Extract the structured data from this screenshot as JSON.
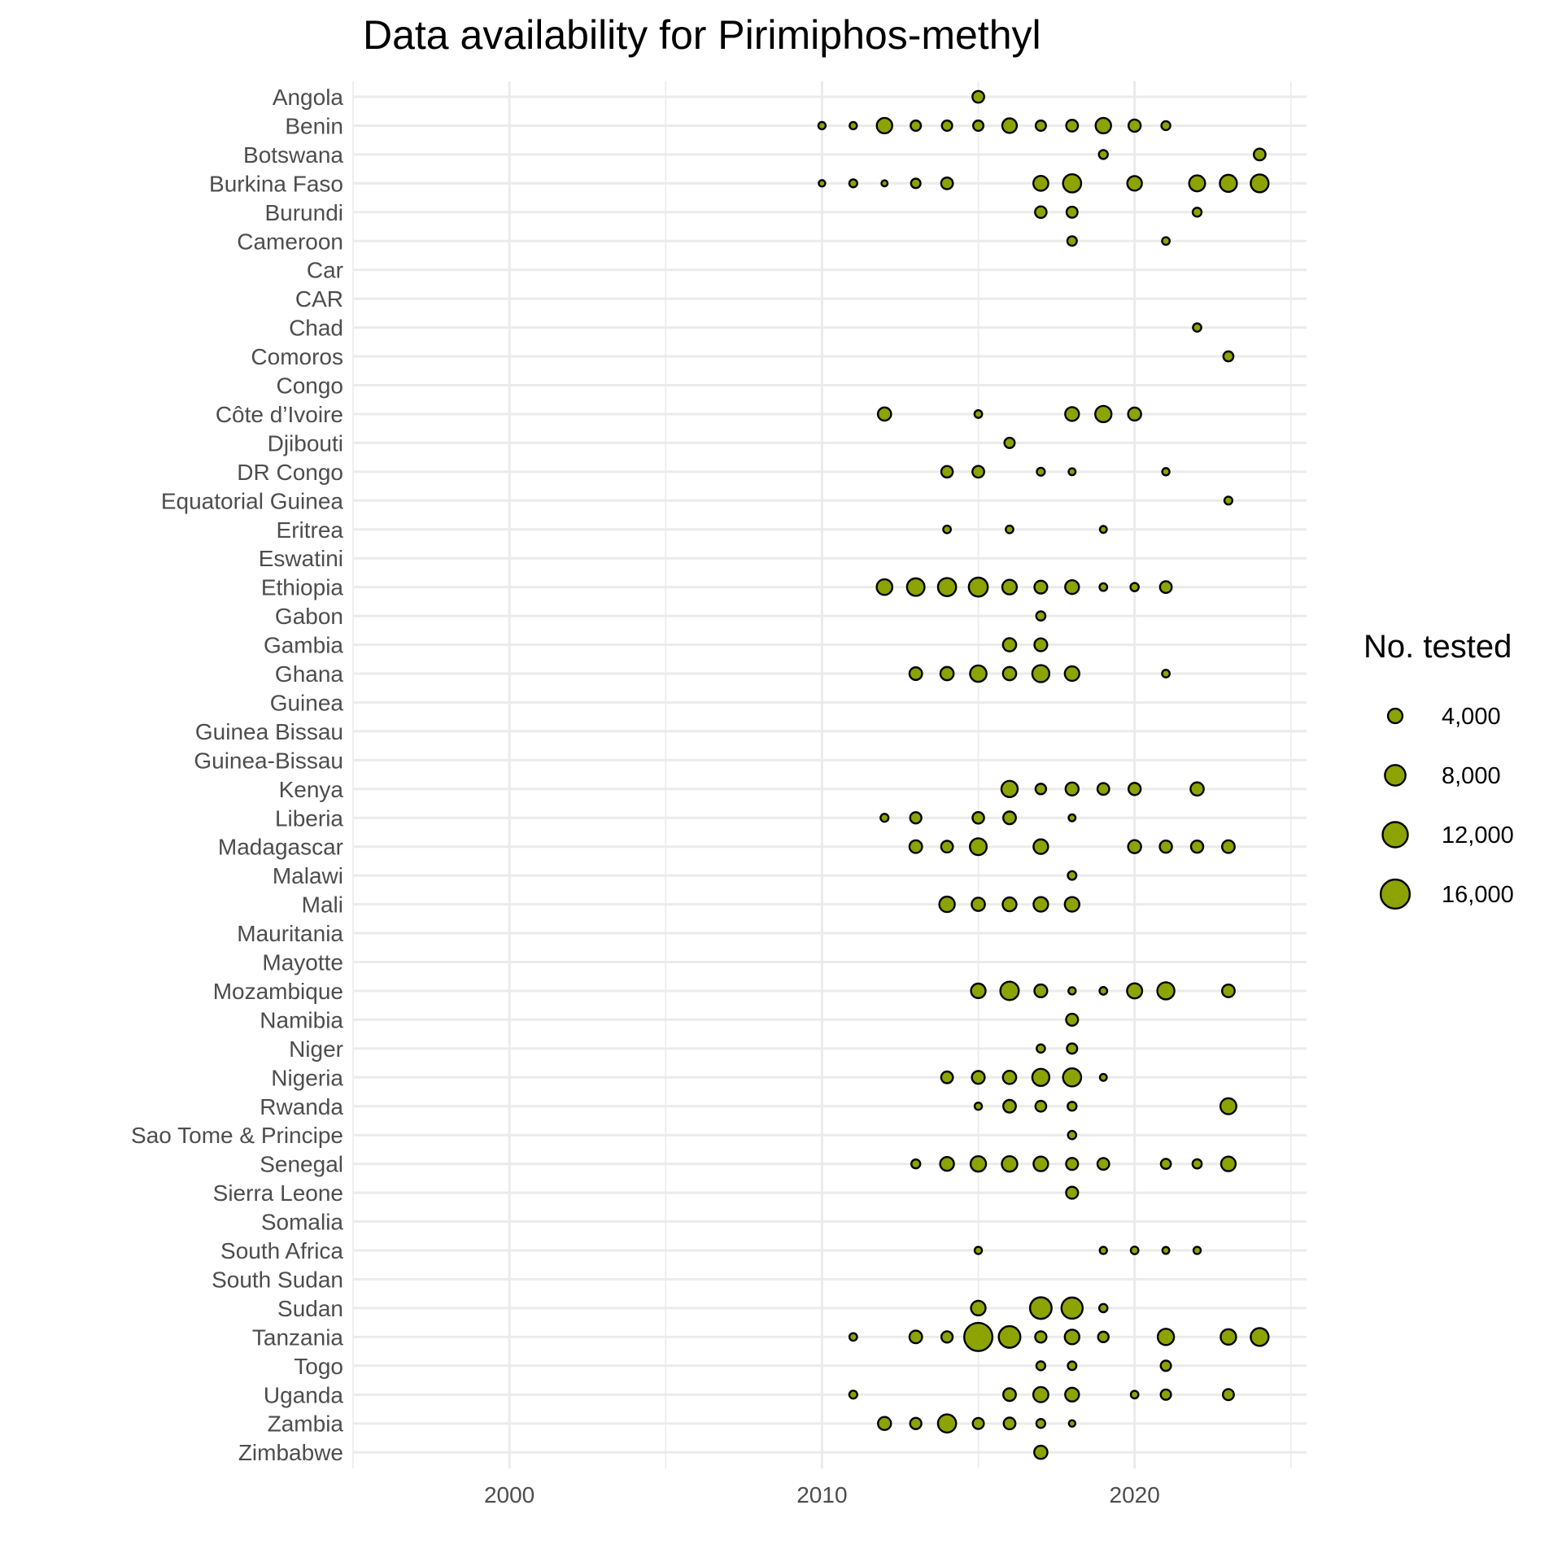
{
  "chart_data": {
    "type": "scatter",
    "title": "Data availability for Pirimiphos-methyl",
    "xlabel": "",
    "ylabel": "",
    "xlim": [
      1995,
      2025.5
    ],
    "x_ticks": [
      2000,
      2010,
      2020
    ],
    "x_tick_labels": [
      "2000",
      "2010",
      "2020"
    ],
    "grid": true,
    "point_color": "#8ca300",
    "point_stroke": "#000000",
    "size_legend": {
      "title": "No. tested",
      "placement": "right",
      "breaks": [
        4000,
        8000,
        12000,
        16000
      ],
      "labels": [
        "4,000",
        "8,000",
        "12,000",
        "16,000"
      ]
    },
    "categories": [
      "Angola",
      "Benin",
      "Botswana",
      "Burkina Faso",
      "Burundi",
      "Cameroon",
      "Car",
      "CAR",
      "Chad",
      "Comoros",
      "Congo",
      "Côte d’Ivoire",
      "Djibouti",
      "DR Congo",
      "Equatorial Guinea",
      "Eritrea",
      "Eswatini",
      "Ethiopia",
      "Gabon",
      "Gambia",
      "Ghana",
      "Guinea",
      "Guinea Bissau",
      "Guinea-Bissau",
      "Kenya",
      "Liberia",
      "Madagascar",
      "Malawi",
      "Mali",
      "Mauritania",
      "Mayotte",
      "Mozambique",
      "Namibia",
      "Niger",
      "Nigeria",
      "Rwanda",
      "Sao Tome & Principe",
      "Senegal",
      "Sierra Leone",
      "Somalia",
      "South Africa",
      "South Sudan",
      "Sudan",
      "Tanzania",
      "Togo",
      "Uganda",
      "Zambia",
      "Zimbabwe"
    ],
    "points": [
      {
        "country": "Angola",
        "year": 2015,
        "n": 2600
      },
      {
        "country": "Benin",
        "year": 2010,
        "n": 1000
      },
      {
        "country": "Benin",
        "year": 2011,
        "n": 1000
      },
      {
        "country": "Benin",
        "year": 2012,
        "n": 4500
      },
      {
        "country": "Benin",
        "year": 2013,
        "n": 2000
      },
      {
        "country": "Benin",
        "year": 2014,
        "n": 2000
      },
      {
        "country": "Benin",
        "year": 2015,
        "n": 2000
      },
      {
        "country": "Benin",
        "year": 2016,
        "n": 4000
      },
      {
        "country": "Benin",
        "year": 2017,
        "n": 2000
      },
      {
        "country": "Benin",
        "year": 2018,
        "n": 2600
      },
      {
        "country": "Benin",
        "year": 2019,
        "n": 4500
      },
      {
        "country": "Benin",
        "year": 2020,
        "n": 2800
      },
      {
        "country": "Benin",
        "year": 2021,
        "n": 1500
      },
      {
        "country": "Botswana",
        "year": 2019,
        "n": 1500
      },
      {
        "country": "Botswana",
        "year": 2024,
        "n": 2600
      },
      {
        "country": "Burkina Faso",
        "year": 2010,
        "n": 800
      },
      {
        "country": "Burkina Faso",
        "year": 2011,
        "n": 1200
      },
      {
        "country": "Burkina Faso",
        "year": 2012,
        "n": 700
      },
      {
        "country": "Burkina Faso",
        "year": 2013,
        "n": 1700
      },
      {
        "country": "Burkina Faso",
        "year": 2014,
        "n": 2600
      },
      {
        "country": "Burkina Faso",
        "year": 2017,
        "n": 4200
      },
      {
        "country": "Burkina Faso",
        "year": 2018,
        "n": 6200
      },
      {
        "country": "Burkina Faso",
        "year": 2020,
        "n": 4000
      },
      {
        "country": "Burkina Faso",
        "year": 2022,
        "n": 4800
      },
      {
        "country": "Burkina Faso",
        "year": 2023,
        "n": 5500
      },
      {
        "country": "Burkina Faso",
        "year": 2024,
        "n": 6000
      },
      {
        "country": "Burundi",
        "year": 2017,
        "n": 2500
      },
      {
        "country": "Burundi",
        "year": 2018,
        "n": 2300
      },
      {
        "country": "Burundi",
        "year": 2022,
        "n": 1500
      },
      {
        "country": "Cameroon",
        "year": 2018,
        "n": 1700
      },
      {
        "country": "Cameroon",
        "year": 2021,
        "n": 1100
      },
      {
        "country": "Chad",
        "year": 2022,
        "n": 1300
      },
      {
        "country": "Comoros",
        "year": 2023,
        "n": 1900
      },
      {
        "country": "Côte d’Ivoire",
        "year": 2012,
        "n": 3300
      },
      {
        "country": "Côte d’Ivoire",
        "year": 2015,
        "n": 1100
      },
      {
        "country": "Côte d’Ivoire",
        "year": 2018,
        "n": 3600
      },
      {
        "country": "Côte d’Ivoire",
        "year": 2019,
        "n": 5000
      },
      {
        "country": "Côte d’Ivoire",
        "year": 2020,
        "n": 3200
      },
      {
        "country": "Djibouti",
        "year": 2016,
        "n": 2000
      },
      {
        "country": "DR Congo",
        "year": 2014,
        "n": 2500
      },
      {
        "country": "DR Congo",
        "year": 2015,
        "n": 2600
      },
      {
        "country": "DR Congo",
        "year": 2017,
        "n": 1200
      },
      {
        "country": "DR Congo",
        "year": 2018,
        "n": 900
      },
      {
        "country": "DR Congo",
        "year": 2021,
        "n": 1000
      },
      {
        "country": "Equatorial Guinea",
        "year": 2023,
        "n": 1200
      },
      {
        "country": "Eritrea",
        "year": 2014,
        "n": 1100
      },
      {
        "country": "Eritrea",
        "year": 2016,
        "n": 1100
      },
      {
        "country": "Eritrea",
        "year": 2019,
        "n": 900
      },
      {
        "country": "Ethiopia",
        "year": 2012,
        "n": 4600
      },
      {
        "country": "Ethiopia",
        "year": 2013,
        "n": 5800
      },
      {
        "country": "Ethiopia",
        "year": 2014,
        "n": 6200
      },
      {
        "country": "Ethiopia",
        "year": 2015,
        "n": 6800
      },
      {
        "country": "Ethiopia",
        "year": 2016,
        "n": 4000
      },
      {
        "country": "Ethiopia",
        "year": 2017,
        "n": 3100
      },
      {
        "country": "Ethiopia",
        "year": 2018,
        "n": 3600
      },
      {
        "country": "Ethiopia",
        "year": 2019,
        "n": 1100
      },
      {
        "country": "Ethiopia",
        "year": 2020,
        "n": 1300
      },
      {
        "country": "Ethiopia",
        "year": 2021,
        "n": 2600
      },
      {
        "country": "Gabon",
        "year": 2017,
        "n": 1600
      },
      {
        "country": "Gambia",
        "year": 2016,
        "n": 3300
      },
      {
        "country": "Gambia",
        "year": 2017,
        "n": 3100
      },
      {
        "country": "Ghana",
        "year": 2013,
        "n": 3000
      },
      {
        "country": "Ghana",
        "year": 2014,
        "n": 3300
      },
      {
        "country": "Ghana",
        "year": 2015,
        "n": 5100
      },
      {
        "country": "Ghana",
        "year": 2016,
        "n": 3300
      },
      {
        "country": "Ghana",
        "year": 2017,
        "n": 5500
      },
      {
        "country": "Ghana",
        "year": 2018,
        "n": 4000
      },
      {
        "country": "Ghana",
        "year": 2021,
        "n": 1100
      },
      {
        "country": "Kenya",
        "year": 2016,
        "n": 5000
      },
      {
        "country": "Kenya",
        "year": 2017,
        "n": 2100
      },
      {
        "country": "Kenya",
        "year": 2018,
        "n": 3200
      },
      {
        "country": "Kenya",
        "year": 2019,
        "n": 2600
      },
      {
        "country": "Kenya",
        "year": 2020,
        "n": 2800
      },
      {
        "country": "Kenya",
        "year": 2022,
        "n": 3300
      },
      {
        "country": "Liberia",
        "year": 2012,
        "n": 1200
      },
      {
        "country": "Liberia",
        "year": 2013,
        "n": 2400
      },
      {
        "country": "Liberia",
        "year": 2015,
        "n": 2500
      },
      {
        "country": "Liberia",
        "year": 2016,
        "n": 3000
      },
      {
        "country": "Liberia",
        "year": 2018,
        "n": 900
      },
      {
        "country": "Madagascar",
        "year": 2013,
        "n": 3000
      },
      {
        "country": "Madagascar",
        "year": 2014,
        "n": 2600
      },
      {
        "country": "Madagascar",
        "year": 2015,
        "n": 5300
      },
      {
        "country": "Madagascar",
        "year": 2017,
        "n": 4000
      },
      {
        "country": "Madagascar",
        "year": 2020,
        "n": 3200
      },
      {
        "country": "Madagascar",
        "year": 2021,
        "n": 2800
      },
      {
        "country": "Madagascar",
        "year": 2022,
        "n": 2800
      },
      {
        "country": "Madagascar",
        "year": 2023,
        "n": 3000
      },
      {
        "country": "Malawi",
        "year": 2018,
        "n": 1400
      },
      {
        "country": "Mali",
        "year": 2014,
        "n": 4500
      },
      {
        "country": "Mali",
        "year": 2015,
        "n": 3300
      },
      {
        "country": "Mali",
        "year": 2016,
        "n": 3600
      },
      {
        "country": "Mali",
        "year": 2017,
        "n": 4000
      },
      {
        "country": "Mali",
        "year": 2018,
        "n": 4000
      },
      {
        "country": "Mozambique",
        "year": 2015,
        "n": 4000
      },
      {
        "country": "Mozambique",
        "year": 2016,
        "n": 6400
      },
      {
        "country": "Mozambique",
        "year": 2017,
        "n": 3100
      },
      {
        "country": "Mozambique",
        "year": 2018,
        "n": 1000
      },
      {
        "country": "Mozambique",
        "year": 2019,
        "n": 1100
      },
      {
        "country": "Mozambique",
        "year": 2020,
        "n": 4300
      },
      {
        "country": "Mozambique",
        "year": 2021,
        "n": 5500
      },
      {
        "country": "Mozambique",
        "year": 2023,
        "n": 3000
      },
      {
        "country": "Namibia",
        "year": 2018,
        "n": 2700
      },
      {
        "country": "Niger",
        "year": 2017,
        "n": 1300
      },
      {
        "country": "Niger",
        "year": 2018,
        "n": 2000
      },
      {
        "country": "Nigeria",
        "year": 2014,
        "n": 2600
      },
      {
        "country": "Nigeria",
        "year": 2015,
        "n": 3100
      },
      {
        "country": "Nigeria",
        "year": 2016,
        "n": 3300
      },
      {
        "country": "Nigeria",
        "year": 2017,
        "n": 5500
      },
      {
        "country": "Nigeria",
        "year": 2018,
        "n": 6200
      },
      {
        "country": "Nigeria",
        "year": 2019,
        "n": 900
      },
      {
        "country": "Rwanda",
        "year": 2015,
        "n": 1000
      },
      {
        "country": "Rwanda",
        "year": 2016,
        "n": 3000
      },
      {
        "country": "Rwanda",
        "year": 2017,
        "n": 2200
      },
      {
        "country": "Rwanda",
        "year": 2018,
        "n": 1500
      },
      {
        "country": "Rwanda",
        "year": 2023,
        "n": 4800
      },
      {
        "country": "Sao Tome & Principe",
        "year": 2018,
        "n": 1300
      },
      {
        "country": "Senegal",
        "year": 2013,
        "n": 1500
      },
      {
        "country": "Senegal",
        "year": 2014,
        "n": 3600
      },
      {
        "country": "Senegal",
        "year": 2015,
        "n": 4500
      },
      {
        "country": "Senegal",
        "year": 2016,
        "n": 4500
      },
      {
        "country": "Senegal",
        "year": 2017,
        "n": 4000
      },
      {
        "country": "Senegal",
        "year": 2018,
        "n": 2700
      },
      {
        "country": "Senegal",
        "year": 2019,
        "n": 2600
      },
      {
        "country": "Senegal",
        "year": 2021,
        "n": 1900
      },
      {
        "country": "Senegal",
        "year": 2022,
        "n": 1600
      },
      {
        "country": "Senegal",
        "year": 2023,
        "n": 4000
      },
      {
        "country": "Sierra Leone",
        "year": 2018,
        "n": 2700
      },
      {
        "country": "South Africa",
        "year": 2015,
        "n": 1000
      },
      {
        "country": "South Africa",
        "year": 2019,
        "n": 1000
      },
      {
        "country": "South Africa",
        "year": 2020,
        "n": 1100
      },
      {
        "country": "South Africa",
        "year": 2021,
        "n": 900
      },
      {
        "country": "South Africa",
        "year": 2022,
        "n": 1000
      },
      {
        "country": "Sudan",
        "year": 2015,
        "n": 4000
      },
      {
        "country": "Sudan",
        "year": 2017,
        "n": 8800
      },
      {
        "country": "Sudan",
        "year": 2018,
        "n": 8500
      },
      {
        "country": "Sudan",
        "year": 2019,
        "n": 1300
      },
      {
        "country": "Tanzania",
        "year": 2011,
        "n": 1100
      },
      {
        "country": "Tanzania",
        "year": 2013,
        "n": 3000
      },
      {
        "country": "Tanzania",
        "year": 2014,
        "n": 2400
      },
      {
        "country": "Tanzania",
        "year": 2015,
        "n": 15000
      },
      {
        "country": "Tanzania",
        "year": 2016,
        "n": 8800
      },
      {
        "country": "Tanzania",
        "year": 2017,
        "n": 2400
      },
      {
        "country": "Tanzania",
        "year": 2018,
        "n": 4000
      },
      {
        "country": "Tanzania",
        "year": 2019,
        "n": 2100
      },
      {
        "country": "Tanzania",
        "year": 2021,
        "n": 5000
      },
      {
        "country": "Tanzania",
        "year": 2023,
        "n": 4500
      },
      {
        "country": "Tanzania",
        "year": 2024,
        "n": 6000
      },
      {
        "country": "Togo",
        "year": 2017,
        "n": 1500
      },
      {
        "country": "Togo",
        "year": 2018,
        "n": 1400
      },
      {
        "country": "Togo",
        "year": 2021,
        "n": 2000
      },
      {
        "country": "Uganda",
        "year": 2011,
        "n": 1200
      },
      {
        "country": "Uganda",
        "year": 2016,
        "n": 3000
      },
      {
        "country": "Uganda",
        "year": 2017,
        "n": 4300
      },
      {
        "country": "Uganda",
        "year": 2018,
        "n": 3600
      },
      {
        "country": "Uganda",
        "year": 2020,
        "n": 1100
      },
      {
        "country": "Uganda",
        "year": 2021,
        "n": 2000
      },
      {
        "country": "Uganda",
        "year": 2023,
        "n": 2300
      },
      {
        "country": "Zambia",
        "year": 2012,
        "n": 3200
      },
      {
        "country": "Zambia",
        "year": 2013,
        "n": 2400
      },
      {
        "country": "Zambia",
        "year": 2014,
        "n": 6200
      },
      {
        "country": "Zambia",
        "year": 2015,
        "n": 2300
      },
      {
        "country": "Zambia",
        "year": 2016,
        "n": 2600
      },
      {
        "country": "Zambia",
        "year": 2017,
        "n": 1500
      },
      {
        "country": "Zambia",
        "year": 2018,
        "n": 800
      },
      {
        "country": "Zimbabwe",
        "year": 2017,
        "n": 3300
      }
    ]
  }
}
